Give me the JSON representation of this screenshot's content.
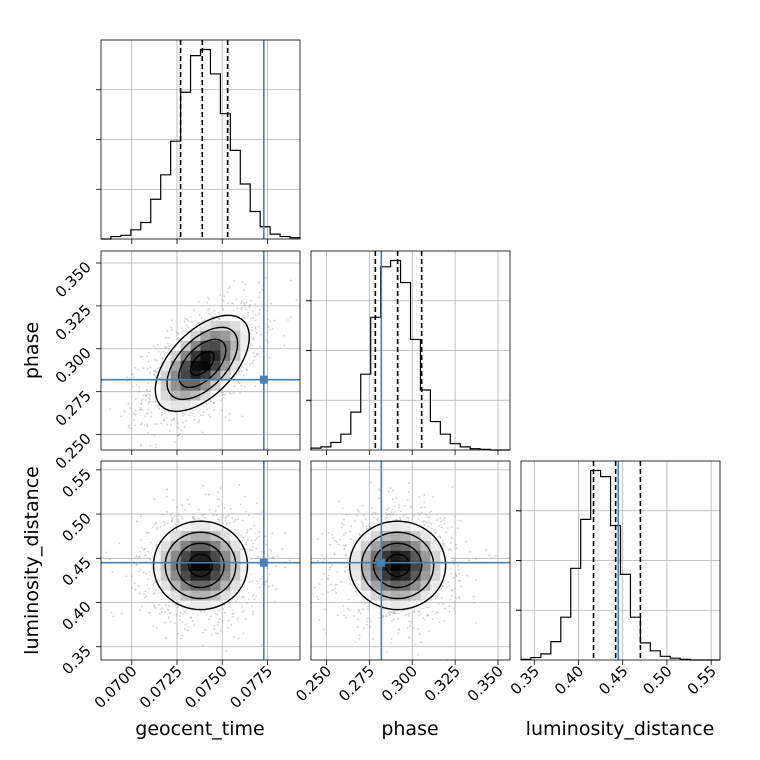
{
  "colors": {
    "truth": "#4682b4",
    "hist": "#000000",
    "grid": "#b0b0b0",
    "scatter": "#999999"
  },
  "chart_data": {
    "type": "corner",
    "grid": true,
    "parameters": [
      "geocent_time",
      "phase",
      "luminosity_distance"
    ],
    "ranges": {
      "geocent_time": [
        0.0683,
        0.0793
      ],
      "phase": [
        0.241,
        0.357
      ],
      "luminosity_distance": [
        0.335,
        0.56
      ]
    },
    "ticks": {
      "geocent_time": {
        "values": [
          0.07,
          0.0725,
          0.075,
          0.0775
        ],
        "labels": [
          "0.0700",
          "0.0725",
          "0.0750",
          "0.0775"
        ]
      },
      "phase": {
        "values": [
          0.25,
          0.275,
          0.3,
          0.325,
          0.35
        ],
        "labels": [
          "0.250",
          "0.275",
          "0.300",
          "0.325",
          "0.350"
        ]
      },
      "luminosity_distance": {
        "values": [
          0.35,
          0.4,
          0.45,
          0.5,
          0.55
        ],
        "labels": [
          "0.35",
          "0.40",
          "0.45",
          "0.50",
          "0.55"
        ]
      }
    },
    "truths": {
      "geocent_time": 0.0773,
      "phase": 0.282,
      "luminosity_distance": 0.445
    },
    "quantiles": {
      "geocent_time": [
        0.0727,
        0.0739,
        0.0753
      ],
      "phase": [
        0.2785,
        0.2915,
        0.3055
      ],
      "luminosity_distance": [
        0.417,
        0.442,
        0.47
      ]
    },
    "histograms": {
      "geocent_time": {
        "range": [
          0.0683,
          0.0793
        ],
        "counts": [
          0,
          4,
          6,
          15,
          27,
          65,
          105,
          160,
          240,
          300,
          310,
          270,
          205,
          145,
          90,
          45,
          20,
          8,
          4,
          2
        ]
      },
      "phase": {
        "range": [
          0.241,
          0.357
        ],
        "counts": [
          3,
          5,
          12,
          25,
          60,
          120,
          210,
          290,
          300,
          265,
          175,
          95,
          45,
          25,
          10,
          5,
          2,
          1,
          0,
          0
        ]
      },
      "luminosity_distance": {
        "range": [
          0.335,
          0.56
        ],
        "counts": [
          1,
          4,
          10,
          30,
          70,
          150,
          230,
          310,
          300,
          220,
          140,
          70,
          28,
          15,
          6,
          3,
          1,
          0,
          0,
          0
        ]
      }
    },
    "pairs": [
      {
        "x": "geocent_time",
        "y": "phase",
        "center": [
          0.0739,
          0.2915
        ],
        "sigma": [
          0.0013,
          0.014
        ],
        "rho": 0.55
      },
      {
        "x": "geocent_time",
        "y": "luminosity_distance",
        "center": [
          0.0738,
          0.442
        ],
        "sigma": [
          0.0013,
          0.025
        ],
        "rho": 0.0
      },
      {
        "x": "phase",
        "y": "luminosity_distance",
        "center": [
          0.2915,
          0.442
        ],
        "sigma": [
          0.014,
          0.025
        ],
        "rho": 0.0
      }
    ]
  }
}
